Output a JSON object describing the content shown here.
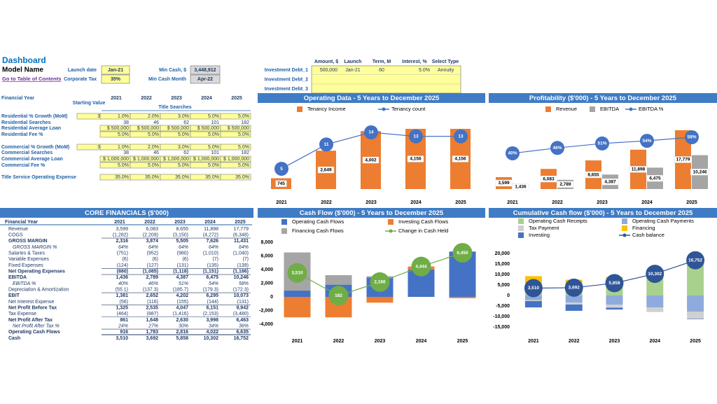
{
  "header": {
    "title": "Dashboard",
    "model_name": "Model Name",
    "toc_link": "Go to Table of Contents"
  },
  "inputs": [
    {
      "label": "Launch date",
      "value": "Jan-21"
    },
    {
      "label": "Corporate Tax",
      "value": "35%"
    },
    {
      "label": "Min Cash, $",
      "value": "3,448,912"
    },
    {
      "label": "Min Cash Month",
      "value": "Apr-22"
    }
  ],
  "investments": {
    "columns": [
      "Amount, $",
      "Launch",
      "Term, M",
      "Interest, %",
      "Select Type"
    ],
    "rows": [
      {
        "label": "Investment Debt_1",
        "cells": [
          "500,000",
          "Jan-21",
          "60",
          "5.0%",
          "Annuity"
        ]
      },
      {
        "label": "Investment Debt_2"
      },
      {
        "label": "Investment Debt_3"
      }
    ]
  },
  "assumptions": {
    "year_label": "Financial Year",
    "start_label": "Starting Value",
    "years": [
      "2021",
      "2022",
      "2023",
      "2024",
      "2025"
    ],
    "section": "Title Searches",
    "rows": [
      {
        "label": "Residential % Growth (MoM)",
        "start": "3",
        "input": true,
        "cells": [
          "1.0%",
          "2.0%",
          "3.0%",
          "5.0%",
          "5.0%"
        ]
      },
      {
        "label": "Residential Searches",
        "cells": [
          "38",
          "46",
          "62",
          "101",
          "182"
        ]
      },
      {
        "label": "Residential Average Loan",
        "input": true,
        "cells": [
          "$ 500,000",
          "$ 500,000",
          "$ 500,000",
          "$ 500,000",
          "$ 500,000"
        ]
      },
      {
        "label": "Residential Fee %",
        "input": true,
        "cells": [
          "5.0%",
          "5.0%",
          "5.0%",
          "5.0%",
          "5.0%"
        ]
      },
      {
        "label": "Commercial % Growth (MoM)",
        "start": "3",
        "input": true,
        "cells": [
          "1.0%",
          "2.0%",
          "3.0%",
          "5.0%",
          "5.0%"
        ]
      },
      {
        "label": "Commercial Searches",
        "cells": [
          "38",
          "46",
          "62",
          "101",
          "182"
        ]
      },
      {
        "label": "Commercial Average Loan",
        "input": true,
        "cells": [
          "$ 1,000,000",
          "$ 1,000,000",
          "$ 1,000,000",
          "$ 1,000,000",
          "$ 1,000,000"
        ]
      },
      {
        "label": "Commercial Fee %",
        "input": true,
        "cells": [
          "5.0%",
          "5.0%",
          "5.0%",
          "5.0%",
          "5.0%"
        ]
      },
      {
        "label": "Title Service Operating Expense",
        "input": true,
        "cells": [
          "35.0%",
          "35.0%",
          "35.0%",
          "35.0%",
          "35.0%"
        ]
      }
    ]
  },
  "core_financials": {
    "title": "CORE FINANCIALS ($'000)",
    "year_label": "Financial Year",
    "years": [
      "2021",
      "2022",
      "2023",
      "2024",
      "2025"
    ],
    "rows": [
      {
        "label": "Revenue",
        "cells": [
          "3,599",
          "6,083",
          "8,655",
          "11,898",
          "17,779"
        ]
      },
      {
        "label": "COGS",
        "cells": [
          "(1,282)",
          "(2,209)",
          "(3,150)",
          "(4,272)",
          "(6,348)"
        ]
      },
      {
        "label": "GROSS MARGIN",
        "style": "bold",
        "cells": [
          "2,316",
          "3,874",
          "5,505",
          "7,626",
          "11,431"
        ]
      },
      {
        "label": "GROSS MARGIN %",
        "style": "italic",
        "cells": [
          "64%",
          "64%",
          "64%",
          "64%",
          "64%"
        ]
      },
      {
        "label": "Salaries & Taxes",
        "cells": [
          "(751)",
          "(952)",
          "(980)",
          "(1,010)",
          "(1,040)"
        ]
      },
      {
        "label": "Variable Expenses",
        "cells": [
          "(6)",
          "(6)",
          "(6)",
          "(7)",
          "(7)"
        ]
      },
      {
        "label": "Fixed Expenses",
        "cells": [
          "(124)",
          "(127)",
          "(131)",
          "(135)",
          "(139)"
        ]
      },
      {
        "label": "Net Operating Expenses",
        "style": "bold",
        "cells": [
          "(880)",
          "(1,085)",
          "(1,118)",
          "(1,151)",
          "(1,186)"
        ]
      },
      {
        "label": "EBITDA",
        "style": "bold",
        "cells": [
          "1,436",
          "2,789",
          "4,387",
          "6,475",
          "10,246"
        ]
      },
      {
        "label": "EBITDA %",
        "style": "italic",
        "cells": [
          "40%",
          "46%",
          "51%",
          "54%",
          "58%"
        ]
      },
      {
        "label": "Depreciation & Amortization",
        "cells": [
          "(55.1)",
          "(137.3)",
          "(185.7)",
          "(179.3)",
          "(172.3)"
        ]
      },
      {
        "label": "EBIT",
        "style": "bold",
        "cells": [
          "1,381",
          "2,652",
          "4,202",
          "6,295",
          "10,073"
        ]
      },
      {
        "label": "Net Interest Expense",
        "cells": [
          "(56)",
          "(116)",
          "(155)",
          "(144)",
          "(131)"
        ]
      },
      {
        "label": "Net Profit Before Tax",
        "style": "bold",
        "cells": [
          "1,325",
          "2,535",
          "4,047",
          "6,151",
          "9,942"
        ]
      },
      {
        "label": "Tax Expense",
        "cells": [
          "(464)",
          "(887)",
          "(1,416)",
          "(2,153)",
          "(3,480)"
        ]
      },
      {
        "label": "Net Profit After Tax",
        "style": "bold",
        "cells": [
          "861",
          "1,648",
          "2,630",
          "3,998",
          "6,463"
        ]
      },
      {
        "label": "Net Profit After Tax %",
        "style": "italic",
        "cells": [
          "24%",
          "27%",
          "30%",
          "34%",
          "36%"
        ]
      },
      {
        "label": "Operating Cash Flows",
        "style": "bold",
        "cells": [
          "916",
          "1,783",
          "2,816",
          "4,022",
          "6,635"
        ]
      },
      {
        "label": "Cash",
        "style": "bold",
        "cells": [
          "3,510",
          "3,692",
          "5,858",
          "10,302",
          "16,752"
        ]
      }
    ]
  },
  "chart_data": [
    {
      "type": "combo",
      "title": "Operating Data - 5 Years to December 2025",
      "categories": [
        "2021",
        "2022",
        "2023",
        "2024",
        "2025"
      ],
      "series": [
        {
          "name": "Tenancy Income",
          "type": "bar",
          "color": "#ed7d31",
          "values": [
            745,
            2649,
            4002,
            4156,
            4156
          ],
          "value_labels": [
            "745",
            "2,649",
            "4,002",
            "4,156",
            "4,156"
          ]
        },
        {
          "name": "Tenancy count",
          "type": "line",
          "color": "#4472c4",
          "values": [
            5,
            11,
            14,
            13,
            13
          ]
        }
      ]
    },
    {
      "type": "combo",
      "title": "Profitability ($'000) - 5 Years to December 2025",
      "categories": [
        "2021",
        "2022",
        "2023",
        "2024",
        "2025"
      ],
      "series": [
        {
          "name": "Revenue",
          "type": "bar",
          "color": "#ed7d31",
          "values": [
            3599,
            6083,
            8655,
            11898,
            17779
          ],
          "value_labels": [
            "3,599",
            "6,083",
            "8,655",
            "11,898",
            "17,779"
          ]
        },
        {
          "name": "EBITDA",
          "type": "bar",
          "color": "#a5a5a5",
          "values": [
            1436,
            2789,
            4387,
            6475,
            10246
          ],
          "value_labels": [
            "1,436",
            "2,789",
            "4,387",
            "6,475",
            "10,246"
          ]
        },
        {
          "name": "EBITDA %",
          "type": "line",
          "color": "#4472c4",
          "values": [
            40,
            46,
            51,
            54,
            58
          ],
          "value_labels": [
            "40%",
            "46%",
            "51%",
            "54%",
            "58%"
          ]
        }
      ]
    },
    {
      "type": "stacked_combo",
      "title": "Cash Flow ($'000) - 5 Years to December 2025",
      "categories": [
        "2021",
        "2022",
        "2023",
        "2024",
        "2025"
      ],
      "ylim": [
        -4000,
        8000
      ],
      "yticks": [
        {
          "value": 8000,
          "label": "8,000"
        },
        {
          "value": 6000,
          "label": "6,000"
        },
        {
          "value": 4000,
          "label": "4,000"
        },
        {
          "value": 2000,
          "label": "2,000"
        },
        0,
        {
          "value": -2000,
          "label": "-2,000"
        },
        {
          "value": -4000,
          "label": "-4,000"
        }
      ],
      "grid": false,
      "series": [
        {
          "name": "Operating Cash Flows",
          "type": "bar",
          "color": "#4472c4",
          "values": [
            916,
            1783,
            2816,
            4022,
            6635
          ]
        },
        {
          "name": "Investing Cash Flows",
          "type": "bar",
          "color": "#ed7d31",
          "values": [
            -3000,
            -3000,
            -850,
            422,
            -185
          ]
        },
        {
          "name": "Financing Cash Flows",
          "type": "bar",
          "color": "#a5a5a5",
          "values": [
            5594,
            1399,
            200,
            0,
            0
          ]
        },
        {
          "name": "Change in Cash Held",
          "type": "line",
          "color": "#70ad47",
          "values": [
            3510,
            182,
            2166,
            4444,
            6450
          ],
          "value_labels": [
            "3,510",
            "182",
            "2,166",
            "4,444",
            "6,450"
          ]
        }
      ]
    },
    {
      "type": "stacked_combo",
      "title": "Cumulative Cash flow ($'000) - 5 Years to December 2025",
      "categories": [
        "2021",
        "2022",
        "2023",
        "2024",
        "2025"
      ],
      "ylim": [
        -15000,
        20000
      ],
      "yticks": [
        {
          "value": 20000,
          "label": "20,000"
        },
        {
          "value": 15000,
          "label": "15,000"
        },
        {
          "value": 10000,
          "label": "10,000"
        },
        {
          "value": 5000,
          "label": "5,000"
        },
        0,
        {
          "value": -5000,
          "label": "-5,000"
        },
        {
          "value": -10000,
          "label": "-10,000"
        },
        {
          "value": -15000,
          "label": "-15,000"
        }
      ],
      "grid": false,
      "series": [
        {
          "name": "Operating Cash Receipts",
          "type": "bar",
          "color": "#a9d18e",
          "values": [
            3599,
            6083,
            8655,
            11898,
            17779
          ]
        },
        {
          "name": "Operating Cash Payments",
          "type": "bar",
          "color": "#8faadc",
          "values": [
            -2219,
            -3413,
            -4423,
            -5723,
            -7664
          ]
        },
        {
          "name": "Tax Payment",
          "type": "bar",
          "color": "#d0d0d0",
          "values": [
            -464,
            -887,
            -1416,
            -2153,
            -3480
          ]
        },
        {
          "name": "Financing",
          "type": "bar",
          "color": "#ffc000",
          "values": [
            5594,
            1399,
            200,
            0,
            0
          ]
        },
        {
          "name": "Investing",
          "type": "bar",
          "color": "#4472c4",
          "values": [
            -3000,
            -3000,
            -850,
            422,
            -185
          ]
        },
        {
          "name": "Cash balance",
          "type": "line",
          "color": "#2f5597",
          "values": [
            3510,
            3692,
            5858,
            10302,
            16752
          ],
          "value_labels": [
            "3,510",
            "3,692",
            "5,858",
            "10,302",
            "16,752"
          ]
        }
      ]
    }
  ]
}
